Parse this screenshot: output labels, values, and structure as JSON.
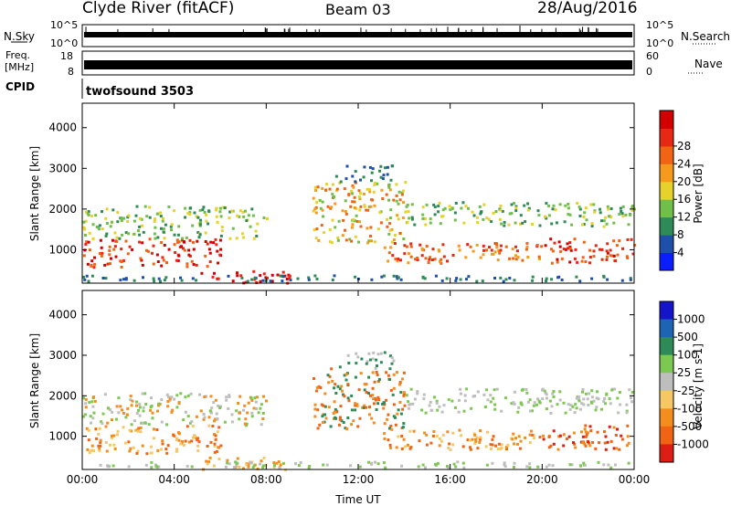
{
  "header": {
    "title_left": "Clyde River (fitACF)",
    "title_center": "Beam 03",
    "title_right": "28/Aug/2016"
  },
  "strips": {
    "nsky_label": "N.Sky",
    "nsky_top_tick": "10^5",
    "nsky_bottom_tick": "10^0",
    "nsearch_label": "N.Search",
    "nsearch_top_tick": "10^5",
    "nsearch_bottom_tick": "10^0",
    "freq_label": "Freq.",
    "freq_unit": "[MHz]",
    "freq_top_tick": "18",
    "freq_bottom_tick": "8",
    "nave_label": "Nave",
    "nave_top_tick": "60",
    "nave_bottom_tick": "0",
    "cpid_label": "CPID",
    "cpid_value": "twofsound 3503"
  },
  "chart_data": [
    {
      "type": "heatmap",
      "name": "power",
      "ylabel": "Slant Range [km]",
      "ylim": [
        180,
        4600
      ],
      "yticks": [
        1000,
        2000,
        3000,
        4000
      ],
      "colorbar_label": "Power [dB]",
      "colorbar_ticks": [
        "4",
        "8",
        "12",
        "16",
        "20",
        "24",
        "28"
      ],
      "colorbar_colors": [
        "#0a1eff",
        "#1e50aa",
        "#2e8b57",
        "#6fbf4a",
        "#e6d22a",
        "#f59a1c",
        "#f06414",
        "#e62814",
        "#d20000"
      ]
    },
    {
      "type": "heatmap",
      "name": "velocity",
      "ylabel": "Slant Range [km]",
      "ylim": [
        180,
        4600
      ],
      "yticks": [
        1000,
        2000,
        3000,
        4000
      ],
      "xlabel": "Time UT",
      "xticks": [
        "00:00",
        "04:00",
        "08:00",
        "12:00",
        "16:00",
        "20:00",
        "00:00"
      ],
      "colorbar_label": "Velocity [m s-1]",
      "colorbar_ticks": [
        "1000",
        "500",
        "100",
        "25",
        "-25",
        "-100",
        "-500",
        "-1000"
      ],
      "colorbar_colors": [
        "#1414c8",
        "#1e64b4",
        "#2e8b57",
        "#7cc850",
        "#bebebe",
        "#f5c864",
        "#f58c1e",
        "#f06414",
        "#dc1e14"
      ]
    }
  ],
  "colors": {
    "power_low": "#0a1eff",
    "power_high": "#d20000",
    "ground_scatter": "#bebebe",
    "frame": "#000000"
  }
}
